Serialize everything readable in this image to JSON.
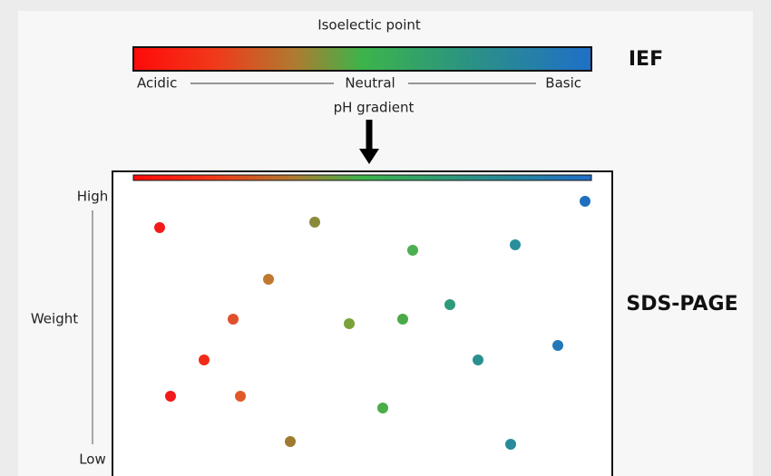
{
  "header": {
    "title": "Isoelectic point",
    "scale": {
      "left": "Acidic",
      "middle": "Neutral",
      "right": "Basic"
    },
    "subtitle": "pH gradient",
    "label": "IEF"
  },
  "gel": {
    "axis": {
      "top": "High",
      "label": "Weight",
      "bottom": "Low"
    },
    "label": "SDS-PAGE"
  }
}
